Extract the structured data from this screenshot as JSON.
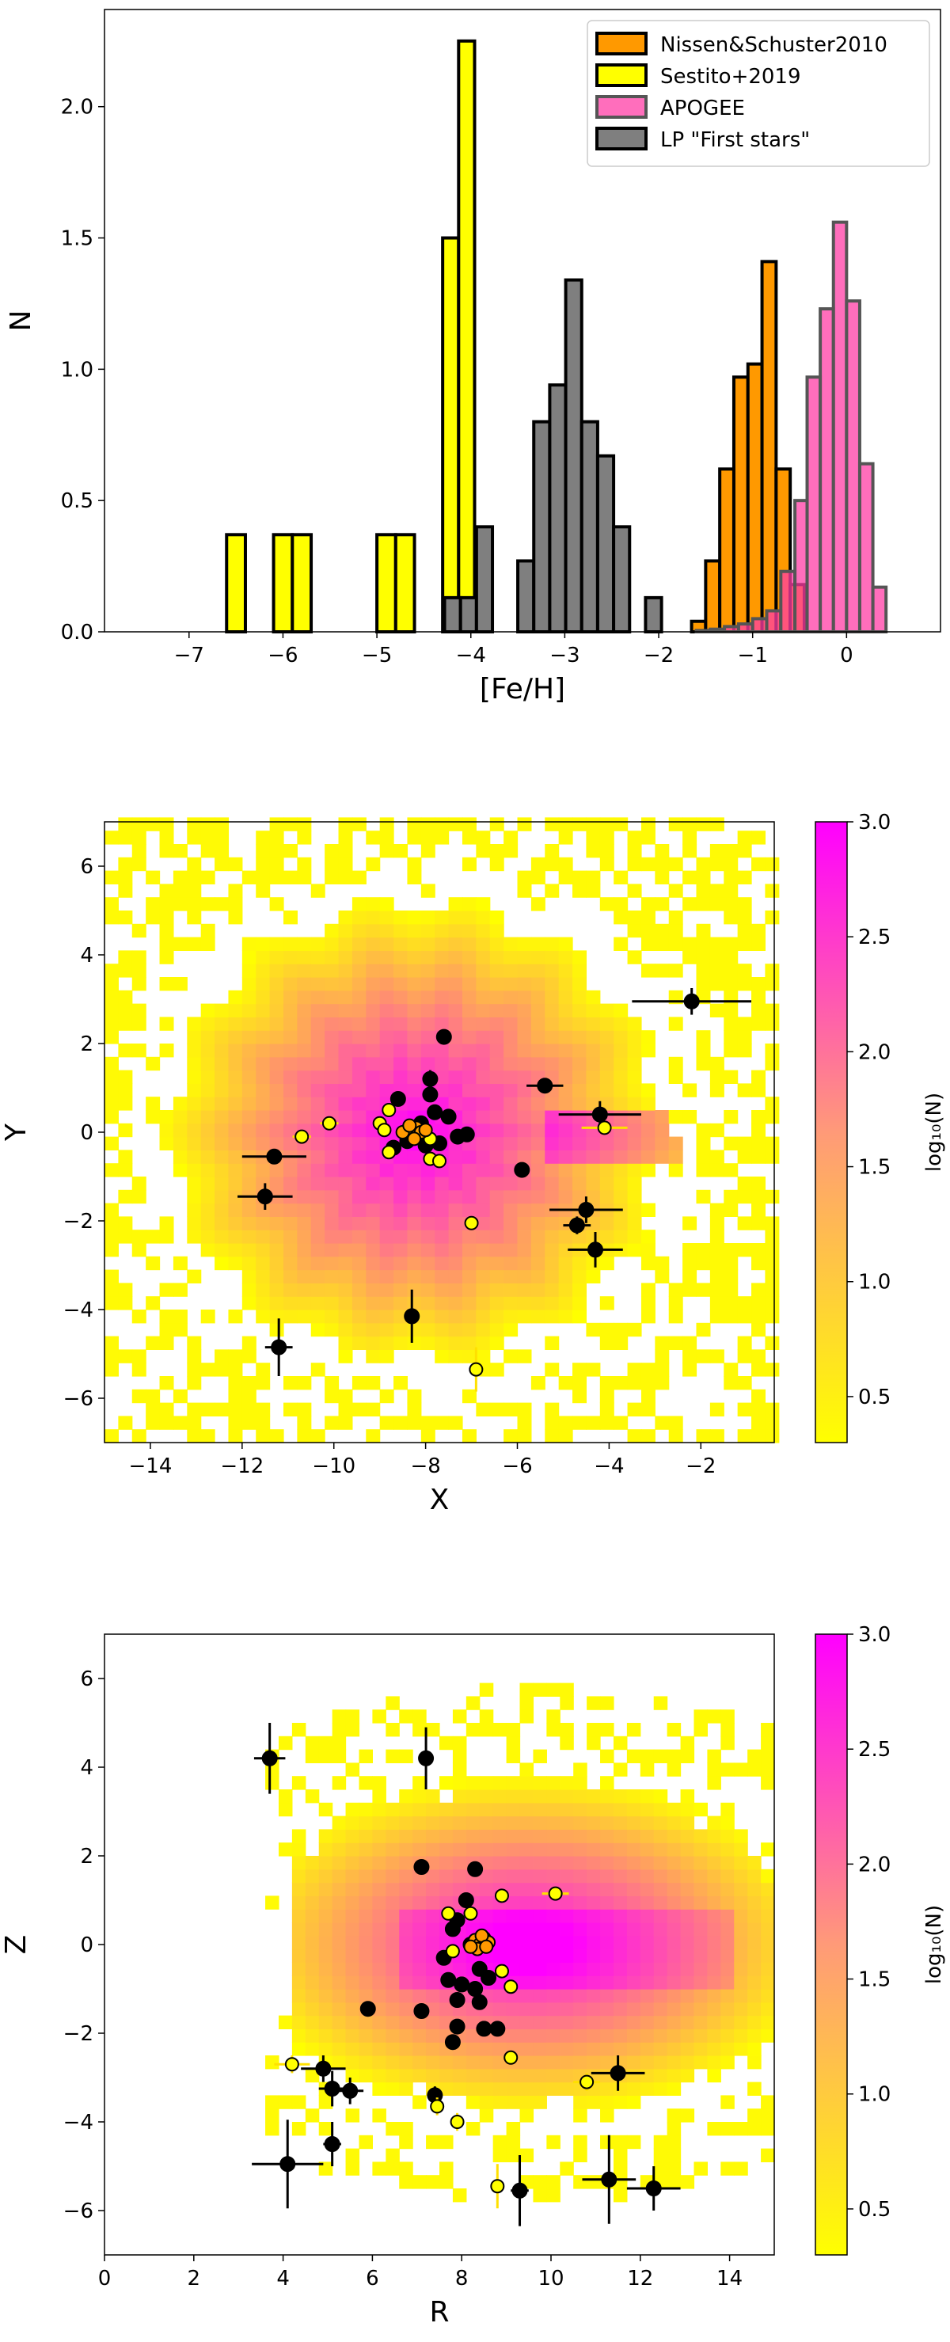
{
  "chart_data": [
    {
      "type": "bar",
      "subtype": "histogram",
      "xlabel": "[Fe/H]",
      "ylabel": "N",
      "xlim": [
        -7.9,
        1.0
      ],
      "ylim": [
        0,
        2.37
      ],
      "xticks": [
        -7,
        -6,
        -5,
        -4,
        -3,
        -2,
        -1,
        0
      ],
      "yticks": [
        0.0,
        0.5,
        1.0,
        1.5,
        2.0
      ],
      "xtick_labels": [
        "−7",
        "−6",
        "−5",
        "−4",
        "−3",
        "−2",
        "−1",
        "0"
      ],
      "ytick_labels": [
        "0.0",
        "0.5",
        "1.0",
        "1.5",
        "2.0"
      ],
      "legend_position": "top-right",
      "series": [
        {
          "name": "Nissen&Schuster2010",
          "color": "#ff9900",
          "bins": [
            [
              -1.65,
              -1.5,
              0.04
            ],
            [
              -1.5,
              -1.35,
              0.27
            ],
            [
              -1.35,
              -1.2,
              0.62
            ],
            [
              -1.2,
              -1.05,
              0.97
            ],
            [
              -1.05,
              -0.9,
              1.02
            ],
            [
              -0.9,
              -0.75,
              1.41
            ],
            [
              -0.75,
              -0.6,
              0.62
            ],
            [
              -0.6,
              -0.45,
              0.18
            ]
          ]
        },
        {
          "name": "Sestito+2019",
          "color": "#ffff00",
          "bins": [
            [
              -6.6,
              -6.4,
              0.37
            ],
            [
              -6.1,
              -5.9,
              0.37
            ],
            [
              -5.9,
              -5.7,
              0.37
            ],
            [
              -5.0,
              -4.8,
              0.37
            ],
            [
              -4.8,
              -4.6,
              0.37
            ],
            [
              -4.3,
              -4.13,
              1.5
            ],
            [
              -4.13,
              -3.96,
              2.25
            ]
          ]
        },
        {
          "name": "APOGEE",
          "color": "#ff5fb8",
          "bins": [
            [
              -1.6,
              -1.45,
              0.005
            ],
            [
              -1.45,
              -1.3,
              0.01
            ],
            [
              -1.3,
              -1.15,
              0.02
            ],
            [
              -1.15,
              -1.0,
              0.03
            ],
            [
              -1.0,
              -0.85,
              0.05
            ],
            [
              -0.85,
              -0.7,
              0.08
            ],
            [
              -0.7,
              -0.55,
              0.23
            ],
            [
              -0.55,
              -0.42,
              0.5
            ],
            [
              -0.42,
              -0.28,
              0.97
            ],
            [
              -0.28,
              -0.14,
              1.23
            ],
            [
              -0.14,
              0.0,
              1.56
            ],
            [
              0.0,
              0.14,
              1.26
            ],
            [
              0.14,
              0.28,
              0.64
            ],
            [
              0.28,
              0.42,
              0.17
            ]
          ]
        },
        {
          "name": "LP \"First stars\"",
          "color": "#7f7f7f",
          "bins": [
            [
              -7.5,
              -4.28,
              0.0
            ],
            [
              -4.28,
              -4.11,
              0.13
            ],
            [
              -4.11,
              -3.94,
              0.13
            ],
            [
              -3.94,
              -3.77,
              0.4
            ],
            [
              -3.5,
              -3.33,
              0.27
            ],
            [
              -3.33,
              -3.16,
              0.8
            ],
            [
              -3.16,
              -2.99,
              0.94
            ],
            [
              -2.99,
              -2.82,
              1.34
            ],
            [
              -2.82,
              -2.65,
              0.8
            ],
            [
              -2.65,
              -2.48,
              0.67
            ],
            [
              -2.48,
              -2.31,
              0.4
            ],
            [
              -2.14,
              -1.97,
              0.13
            ]
          ]
        }
      ]
    },
    {
      "type": "heatmap",
      "xlabel": "X",
      "ylabel": "Y",
      "xlim": [
        -15,
        -0.4
      ],
      "ylim": [
        -7,
        7
      ],
      "xticks": [
        -14,
        -12,
        -10,
        -8,
        -6,
        -4,
        -2
      ],
      "yticks": [
        -6,
        -4,
        -2,
        0,
        2,
        4,
        6
      ],
      "xtick_labels": [
        "−14",
        "−12",
        "−10",
        "−8",
        "−6",
        "−4",
        "−2"
      ],
      "ytick_labels": [
        "−6",
        "−4",
        "−2",
        "0",
        "2",
        "4",
        "6"
      ],
      "colorbar_label": "log₁₀(N)",
      "colorbar_range": [
        0.3,
        3.0
      ],
      "colorbar_ticks": [
        0.5,
        1.0,
        1.5,
        2.0,
        2.5,
        3.0
      ],
      "colorbar_tick_labels": [
        "0.5",
        "1.0",
        "1.5",
        "2.0",
        "2.5",
        "3.0"
      ],
      "colormap": [
        "#ffff00",
        "#ff00ff"
      ],
      "density_center": [
        -8.2,
        0.0
      ],
      "black_points": [
        {
          "x": -2.2,
          "y": 2.95,
          "xerr": 1.3,
          "yerr": 0.3
        },
        {
          "x": -7.6,
          "y": 2.15,
          "xerr": 0.1,
          "yerr": 0.1
        },
        {
          "x": -7.9,
          "y": 1.2,
          "xerr": 0.1,
          "yerr": 0.2
        },
        {
          "x": -5.4,
          "y": 1.05,
          "xerr": 0.4,
          "yerr": 0.1
        },
        {
          "x": -8.6,
          "y": 0.75,
          "xerr": 0.1,
          "yerr": 0.1
        },
        {
          "x": -7.9,
          "y": 0.85,
          "xerr": 0.1,
          "yerr": 0.1
        },
        {
          "x": -4.2,
          "y": 0.4,
          "xerr": 0.9,
          "yerr": 0.3
        },
        {
          "x": -7.5,
          "y": 0.35,
          "xerr": 0.1,
          "yerr": 0.1
        },
        {
          "x": -7.8,
          "y": 0.45,
          "xerr": 0.1,
          "yerr": 0.1
        },
        {
          "x": -8.1,
          "y": 0.2,
          "xerr": 0.1,
          "yerr": 0.1
        },
        {
          "x": -7.1,
          "y": -0.05,
          "xerr": 0.1,
          "yerr": 0.1
        },
        {
          "x": -7.3,
          "y": -0.1,
          "xerr": 0.1,
          "yerr": 0.1
        },
        {
          "x": -8.4,
          "y": -0.2,
          "xerr": 0.1,
          "yerr": 0.1
        },
        {
          "x": -8.0,
          "y": -0.3,
          "xerr": 0.1,
          "yerr": 0.1
        },
        {
          "x": -8.7,
          "y": -0.35,
          "xerr": 0.1,
          "yerr": 0.1
        },
        {
          "x": -7.7,
          "y": -0.25,
          "xerr": 0.1,
          "yerr": 0.1
        },
        {
          "x": -11.3,
          "y": -0.55,
          "xerr": 0.7,
          "yerr": 0.15
        },
        {
          "x": -5.9,
          "y": -0.85,
          "xerr": 0.1,
          "yerr": 0.1
        },
        {
          "x": -11.5,
          "y": -1.45,
          "xerr": 0.6,
          "yerr": 0.3
        },
        {
          "x": -4.5,
          "y": -1.75,
          "xerr": 0.8,
          "yerr": 0.3
        },
        {
          "x": -4.7,
          "y": -2.1,
          "xerr": 0.3,
          "yerr": 0.2
        },
        {
          "x": -4.3,
          "y": -2.65,
          "xerr": 0.6,
          "yerr": 0.4
        },
        {
          "x": -8.3,
          "y": -4.15,
          "xerr": 0.1,
          "yerr": 0.6
        },
        {
          "x": -11.2,
          "y": -4.85,
          "xerr": 0.3,
          "yerr": 0.65
        }
      ],
      "yellow_points": [
        {
          "x": -10.1,
          "y": 0.2,
          "xerr": 0.2,
          "yerr": 0.1
        },
        {
          "x": -10.7,
          "y": -0.1,
          "xerr": 0.2,
          "yerr": 0.1
        },
        {
          "x": -8.8,
          "y": 0.5,
          "xerr": 0.1,
          "yerr": 0.1
        },
        {
          "x": -9.0,
          "y": 0.2,
          "xerr": 0.1,
          "yerr": 0.1
        },
        {
          "x": -8.9,
          "y": 0.05,
          "xerr": 0.1,
          "yerr": 0.1
        },
        {
          "x": -8.8,
          "y": -0.45,
          "xerr": 0.1,
          "yerr": 0.1
        },
        {
          "x": -7.9,
          "y": -0.15,
          "xerr": 0.1,
          "yerr": 0.1
        },
        {
          "x": -7.9,
          "y": -0.6,
          "xerr": 0.1,
          "yerr": 0.1
        },
        {
          "x": -7.7,
          "y": -0.65,
          "xerr": 0.1,
          "yerr": 0.1
        },
        {
          "x": -8.3,
          "y": -0.1,
          "xerr": 0.1,
          "yerr": 0.1
        },
        {
          "x": -7.0,
          "y": -2.05,
          "xerr": 0.1,
          "yerr": 0.1
        },
        {
          "x": -4.1,
          "y": 0.1,
          "xerr": 0.5,
          "yerr": 0.1
        },
        {
          "x": -6.9,
          "y": -5.35,
          "xerr": 0.1,
          "yerr": 0.5
        }
      ],
      "orange_points": [
        {
          "x": -8.4,
          "y": 0.05
        },
        {
          "x": -8.2,
          "y": 0.1
        },
        {
          "x": -8.3,
          "y": -0.05
        },
        {
          "x": -8.1,
          "y": 0.0
        },
        {
          "x": -8.5,
          "y": 0.0
        },
        {
          "x": -8.25,
          "y": -0.15
        },
        {
          "x": -8.0,
          "y": 0.05
        },
        {
          "x": -8.35,
          "y": 0.15
        }
      ]
    },
    {
      "type": "heatmap",
      "xlabel": "R",
      "ylabel": "Z",
      "xlim": [
        0,
        15
      ],
      "ylim": [
        -7,
        7
      ],
      "xticks": [
        0,
        2,
        4,
        6,
        8,
        10,
        12,
        14
      ],
      "yticks": [
        -6,
        -4,
        -2,
        0,
        2,
        4,
        6
      ],
      "xtick_labels": [
        "0",
        "2",
        "4",
        "6",
        "8",
        "10",
        "12",
        "14"
      ],
      "ytick_labels": [
        "−6",
        "−4",
        "−2",
        "0",
        "2",
        "4",
        "6"
      ],
      "colorbar_label": "log₁₀(N)",
      "colorbar_range": [
        0.3,
        3.0
      ],
      "colorbar_ticks": [
        0.5,
        1.0,
        1.5,
        2.0,
        2.5,
        3.0
      ],
      "colorbar_tick_labels": [
        "0.5",
        "1.0",
        "1.5",
        "2.0",
        "2.5",
        "3.0"
      ],
      "colormap": [
        "#ffff00",
        "#ff00ff"
      ],
      "density_center": [
        9.5,
        0.0
      ],
      "black_points": [
        {
          "x": 3.7,
          "y": 4.2,
          "xerr": 0.35,
          "yerr": 0.8
        },
        {
          "x": 7.2,
          "y": 4.2,
          "xerr": 0.1,
          "yerr": 0.7
        },
        {
          "x": 7.1,
          "y": 1.75,
          "xerr": 0.1,
          "yerr": 0.1
        },
        {
          "x": 8.3,
          "y": 1.7,
          "xerr": 0.1,
          "yerr": 0.1
        },
        {
          "x": 8.1,
          "y": 1.0,
          "xerr": 0.1,
          "yerr": 0.1
        },
        {
          "x": 7.9,
          "y": 0.55,
          "xerr": 0.1,
          "yerr": 0.1
        },
        {
          "x": 7.8,
          "y": 0.35,
          "xerr": 0.1,
          "yerr": 0.1
        },
        {
          "x": 8.2,
          "y": 0.0,
          "xerr": 0.1,
          "yerr": 0.1
        },
        {
          "x": 7.6,
          "y": -0.3,
          "xerr": 0.1,
          "yerr": 0.1
        },
        {
          "x": 8.4,
          "y": -0.55,
          "xerr": 0.1,
          "yerr": 0.1
        },
        {
          "x": 7.7,
          "y": -0.8,
          "xerr": 0.1,
          "yerr": 0.1
        },
        {
          "x": 8.0,
          "y": -0.9,
          "xerr": 0.1,
          "yerr": 0.1
        },
        {
          "x": 8.6,
          "y": -0.75,
          "xerr": 0.1,
          "yerr": 0.1
        },
        {
          "x": 8.3,
          "y": -1.0,
          "xerr": 0.1,
          "yerr": 0.1
        },
        {
          "x": 7.9,
          "y": -1.25,
          "xerr": 0.1,
          "yerr": 0.1
        },
        {
          "x": 8.4,
          "y": -1.3,
          "xerr": 0.1,
          "yerr": 0.1
        },
        {
          "x": 7.1,
          "y": -1.5,
          "xerr": 0.1,
          "yerr": 0.1
        },
        {
          "x": 5.9,
          "y": -1.45,
          "xerr": 0.1,
          "yerr": 0.1
        },
        {
          "x": 7.9,
          "y": -1.85,
          "xerr": 0.1,
          "yerr": 0.1
        },
        {
          "x": 8.5,
          "y": -1.9,
          "xerr": 0.1,
          "yerr": 0.1
        },
        {
          "x": 8.8,
          "y": -1.9,
          "xerr": 0.1,
          "yerr": 0.1
        },
        {
          "x": 7.8,
          "y": -2.2,
          "xerr": 0.1,
          "yerr": 0.1
        },
        {
          "x": 4.9,
          "y": -2.8,
          "xerr": 0.5,
          "yerr": 0.3
        },
        {
          "x": 11.5,
          "y": -2.9,
          "xerr": 0.6,
          "yerr": 0.4
        },
        {
          "x": 5.1,
          "y": -3.25,
          "xerr": 0.3,
          "yerr": 0.4
        },
        {
          "x": 5.5,
          "y": -3.3,
          "xerr": 0.3,
          "yerr": 0.3
        },
        {
          "x": 7.4,
          "y": -3.4,
          "xerr": 0.1,
          "yerr": 0.2
        },
        {
          "x": 5.1,
          "y": -4.5,
          "xerr": 0.2,
          "yerr": 0.5
        },
        {
          "x": 4.1,
          "y": -4.95,
          "xerr": 0.8,
          "yerr": 1.0
        },
        {
          "x": 11.3,
          "y": -5.3,
          "xerr": 0.6,
          "yerr": 1.0
        },
        {
          "x": 12.3,
          "y": -5.5,
          "xerr": 0.6,
          "yerr": 0.5
        },
        {
          "x": 9.3,
          "y": -5.55,
          "xerr": 0.2,
          "yerr": 0.8
        }
      ],
      "yellow_points": [
        {
          "x": 10.1,
          "y": 1.15,
          "xerr": 0.3,
          "yerr": 0.1
        },
        {
          "x": 8.9,
          "y": 1.1,
          "xerr": 0.1,
          "yerr": 0.1
        },
        {
          "x": 7.7,
          "y": 0.7,
          "xerr": 0.1,
          "yerr": 0.1
        },
        {
          "x": 8.2,
          "y": 0.7,
          "xerr": 0.1,
          "yerr": 0.1
        },
        {
          "x": 7.8,
          "y": -0.15,
          "xerr": 0.1,
          "yerr": 0.1
        },
        {
          "x": 8.9,
          "y": -0.6,
          "xerr": 0.1,
          "yerr": 0.1
        },
        {
          "x": 9.1,
          "y": -0.95,
          "xerr": 0.1,
          "yerr": 0.1
        },
        {
          "x": 9.1,
          "y": -2.55,
          "xerr": 0.1,
          "yerr": 0.1
        },
        {
          "x": 4.2,
          "y": -2.7,
          "xerr": 0.4,
          "yerr": 0.2
        },
        {
          "x": 10.8,
          "y": -3.1,
          "xerr": 0.3,
          "yerr": 0.2
        },
        {
          "x": 7.45,
          "y": -3.65,
          "xerr": 0.1,
          "yerr": 0.2
        },
        {
          "x": 7.9,
          "y": -4.0,
          "xerr": 0.1,
          "yerr": 0.2
        },
        {
          "x": 8.8,
          "y": -5.45,
          "xerr": 0.1,
          "yerr": 0.5
        }
      ],
      "orange_points": [
        {
          "x": 8.3,
          "y": 0.1
        },
        {
          "x": 8.4,
          "y": 0.0
        },
        {
          "x": 8.5,
          "y": 0.15
        },
        {
          "x": 8.35,
          "y": -0.1
        },
        {
          "x": 8.6,
          "y": 0.05
        },
        {
          "x": 8.2,
          "y": -0.05
        },
        {
          "x": 8.45,
          "y": 0.2
        },
        {
          "x": 8.55,
          "y": -0.05
        }
      ]
    }
  ]
}
